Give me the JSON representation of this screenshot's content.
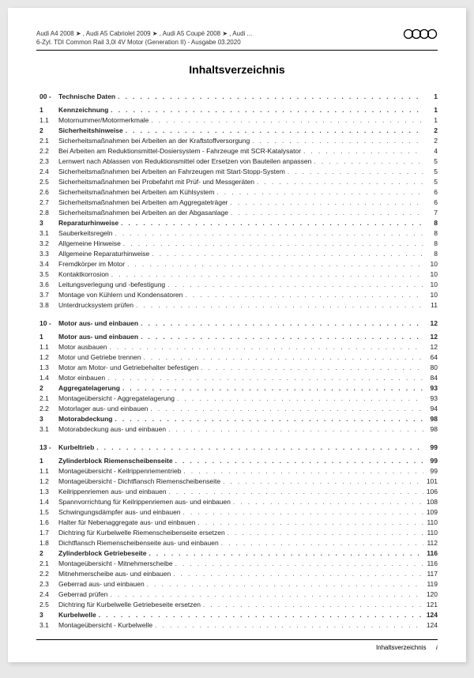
{
  "header": {
    "line1": "Audi A4 2008 ➤ , Audi A5 Cabriolet 2009 ➤ , Audi A5 Coupé 2008 ➤ , Audi ...",
    "line2": "6-Zyl. TDI Common Rail 3,0l 4V Motor (Generation II) - Ausgabe 03.2020"
  },
  "title": "Inhaltsverzeichnis",
  "sections": [
    {
      "heading_num": "00 -",
      "heading_label": "Technische Daten",
      "heading_page": "1",
      "rows": [
        {
          "n": "1",
          "l": "Kennzeichnung",
          "p": "1",
          "b": true
        },
        {
          "n": "1.1",
          "l": "Motornummer/Motormerkmale",
          "p": "1"
        },
        {
          "n": "2",
          "l": "Sicherheitshinweise",
          "p": "2",
          "b": true
        },
        {
          "n": "2.1",
          "l": "Sicherheitsmaßnahmen bei Arbeiten an der Kraftstoffversorgung",
          "p": "2"
        },
        {
          "n": "2.2",
          "l": "Bei Arbeiten am Reduktionsmittel-Dosiersystem - Fahrzeuge mit SCR-Katalysator",
          "p": "4"
        },
        {
          "n": "2.3",
          "l": "Lernwert nach Ablassen von Reduktionsmittel oder Ersetzen von Bauteilen anpassen",
          "p": "5"
        },
        {
          "n": "2.4",
          "l": "Sicherheitsmaßnahmen bei Arbeiten an Fahrzeugen mit Start-Stopp-System",
          "p": "5"
        },
        {
          "n": "2.5",
          "l": "Sicherheitsmaßnahmen bei Probefahrt mit Prüf- und Messgeräten",
          "p": "5"
        },
        {
          "n": "2.6",
          "l": "Sicherheitsmaßnahmen bei Arbeiten am Kühlsystem",
          "p": "6"
        },
        {
          "n": "2.7",
          "l": "Sicherheitsmaßnahmen bei Arbeiten am Aggregateträger",
          "p": "6"
        },
        {
          "n": "2.8",
          "l": "Sicherheitsmaßnahmen bei Arbeiten an der Abgasanlage",
          "p": "7"
        },
        {
          "n": "3",
          "l": "Reparaturhinweise",
          "p": "8",
          "b": true
        },
        {
          "n": "3.1",
          "l": "Sauberkeitsregeln",
          "p": "8"
        },
        {
          "n": "3.2",
          "l": "Allgemeine Hinweise",
          "p": "8"
        },
        {
          "n": "3.3",
          "l": "Allgemeine Reparaturhinweise",
          "p": "8"
        },
        {
          "n": "3.4",
          "l": "Fremdkörper im Motor",
          "p": "10"
        },
        {
          "n": "3.5",
          "l": "Kontaktkorrosion",
          "p": "10"
        },
        {
          "n": "3.6",
          "l": "Leitungsverlegung und -befestigung",
          "p": "10"
        },
        {
          "n": "3.7",
          "l": "Montage von Kühlern und Kondensatoren",
          "p": "10"
        },
        {
          "n": "3.8",
          "l": "Unterdrucksystem prüfen",
          "p": "11"
        }
      ]
    },
    {
      "heading_num": "10 -",
      "heading_label": "Motor aus- und einbauen",
      "heading_page": "12",
      "rows": [
        {
          "n": "1",
          "l": "Motor aus- und einbauen",
          "p": "12",
          "b": true
        },
        {
          "n": "1.1",
          "l": "Motor ausbauen",
          "p": "12"
        },
        {
          "n": "1.2",
          "l": "Motor und Getriebe trennen",
          "p": "64"
        },
        {
          "n": "1.3",
          "l": "Motor am Motor- und Getriebehalter befestigen",
          "p": "80"
        },
        {
          "n": "1.4",
          "l": "Motor einbauen",
          "p": "84"
        },
        {
          "n": "2",
          "l": "Aggregatelagerung",
          "p": "93",
          "b": true
        },
        {
          "n": "2.1",
          "l": "Montageübersicht - Aggregatelagerung",
          "p": "93"
        },
        {
          "n": "2.2",
          "l": "Motorlager aus- und einbauen",
          "p": "94"
        },
        {
          "n": "3",
          "l": "Motorabdeckung",
          "p": "98",
          "b": true
        },
        {
          "n": "3.1",
          "l": "Motorabdeckung aus- und einbauen",
          "p": "98"
        }
      ]
    },
    {
      "heading_num": "13 -",
      "heading_label": "Kurbeltrieb",
      "heading_page": "99",
      "rows": [
        {
          "n": "1",
          "l": "Zylinderblock Riemenscheibenseite",
          "p": "99",
          "b": true
        },
        {
          "n": "1.1",
          "l": "Montageübersicht - Keilrippenriementrieb",
          "p": "99"
        },
        {
          "n": "1.2",
          "l": "Montageübersicht - Dichtflansch Riemenscheibenseite",
          "p": "101"
        },
        {
          "n": "1.3",
          "l": "Keilrippenriemen aus- und einbauen",
          "p": "106"
        },
        {
          "n": "1.4",
          "l": "Spannvorrichtung für Keilrippenriemen aus- und einbauen",
          "p": "108"
        },
        {
          "n": "1.5",
          "l": "Schwingungsdämpfer aus- und einbauen",
          "p": "109"
        },
        {
          "n": "1.6",
          "l": "Halter für Nebenaggregate aus- und einbauen",
          "p": "110"
        },
        {
          "n": "1.7",
          "l": "Dichtring für Kurbelwelle Riemenscheibenseite ersetzen",
          "p": "110"
        },
        {
          "n": "1.8",
          "l": "Dichtflansch Riemenscheibenseite aus- und einbauen",
          "p": "112"
        },
        {
          "n": "2",
          "l": "Zylinderblock Getriebeseite",
          "p": "116",
          "b": true
        },
        {
          "n": "2.1",
          "l": "Montageübersicht - Mitnehmerscheibe",
          "p": "116"
        },
        {
          "n": "2.2",
          "l": "Mitnehmerscheibe aus- und einbauen",
          "p": "117"
        },
        {
          "n": "2.3",
          "l": "Geberrad aus- und einbauen",
          "p": "119"
        },
        {
          "n": "2.4",
          "l": "Geberrad prüfen",
          "p": "120"
        },
        {
          "n": "2.5",
          "l": "Dichtring für Kurbelwelle Getriebeseite ersetzen",
          "p": "121"
        },
        {
          "n": "3",
          "l": "Kurbelwelle",
          "p": "124",
          "b": true
        },
        {
          "n": "3.1",
          "l": "Montageübersicht - Kurbelwelle",
          "p": "124"
        }
      ]
    }
  ],
  "footer": {
    "label": "Inhaltsverzeichnis",
    "page": "i"
  }
}
